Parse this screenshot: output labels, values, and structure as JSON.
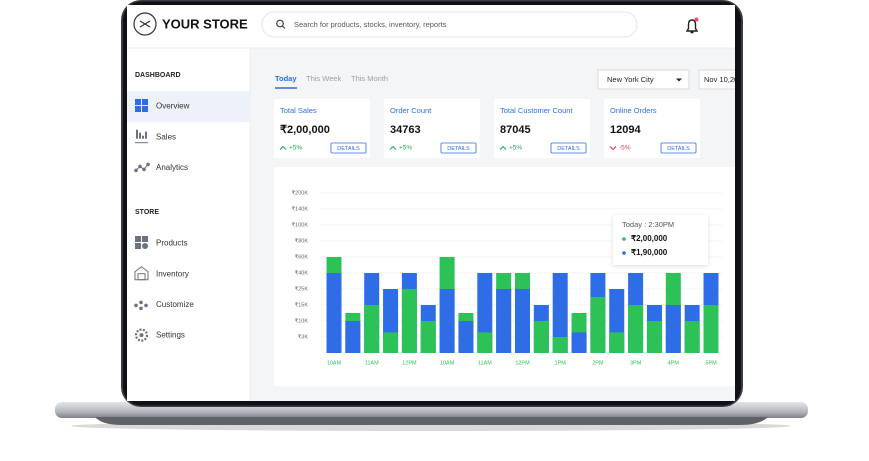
{
  "header": {
    "logo_text": "YOUR STORE",
    "search_placeholder": "Search for products, stocks, inventory, reports"
  },
  "sidebar": {
    "sections": [
      {
        "title": "DASHBOARD",
        "items": [
          "Overview",
          "Sales",
          "Analytics"
        ]
      },
      {
        "title": "STORE",
        "items": [
          "Products",
          "Inventory",
          "Customize",
          "Settings"
        ]
      }
    ]
  },
  "tabs": [
    "Today",
    "This Week",
    "This Month"
  ],
  "location": "New York City",
  "date": "Nov 10,20",
  "cards": [
    {
      "title": "Total Sales",
      "value": "₹2,00,000",
      "change": "+5%",
      "button": "DETAILS"
    },
    {
      "title": "Order Count",
      "value": "34763",
      "change": "+5%",
      "button": "DETAILS"
    },
    {
      "title": "Total Customer Count",
      "value": "87045",
      "change": "+5%",
      "button": "DETAILS"
    },
    {
      "title": "Online Orders",
      "value": "12094",
      "change": "-5%",
      "button": "DETAILS"
    }
  ],
  "chart_data": {
    "type": "bar",
    "categories": [
      "10AM",
      null,
      "11AM",
      null,
      "12PM",
      null,
      "10AM",
      null,
      "11AM",
      null,
      "12PM",
      null,
      "1PM",
      null,
      "2PM",
      null,
      "3PM",
      null,
      "4PM",
      null,
      "5PM"
    ],
    "series": [
      {
        "color": "#2dc257",
        "values": [
          60000,
          12500,
          15000,
          5000,
          25000,
          10000,
          60000,
          12500,
          5000,
          40000,
          40000,
          10000,
          3000,
          12500,
          20000,
          5000,
          15000,
          10000,
          40000,
          10000,
          15000
        ]
      },
      {
        "color": "#2f6de6",
        "values": [
          40000,
          10000,
          40000,
          25000,
          40000,
          15000,
          25000,
          10000,
          40000,
          25000,
          25000,
          15000,
          40000,
          5000,
          40000,
          25000,
          40000,
          15000,
          15000,
          15000,
          40000
        ]
      }
    ],
    "ylim": [
      0,
      200000
    ],
    "yticks": [
      {
        "value": 3000,
        "label": "₹3K"
      },
      {
        "value": 10000,
        "label": "₹10K"
      },
      {
        "value": 15000,
        "label": "₹15K"
      },
      {
        "value": 25000,
        "label": "₹25K"
      },
      {
        "value": 40000,
        "label": "₹40K"
      },
      {
        "value": 60000,
        "label": "₹60K"
      },
      {
        "value": 80000,
        "label": "₹80K"
      },
      {
        "value": 100000,
        "label": "₹100K"
      },
      {
        "value": 140000,
        "label": "₹140K"
      },
      {
        "value": 200000,
        "label": "₹200K"
      }
    ],
    "grid": true,
    "tooltip": {
      "title": "Today : 2:30PM",
      "lines": [
        "₹2,00,000",
        "₹1,90,000"
      ]
    }
  }
}
